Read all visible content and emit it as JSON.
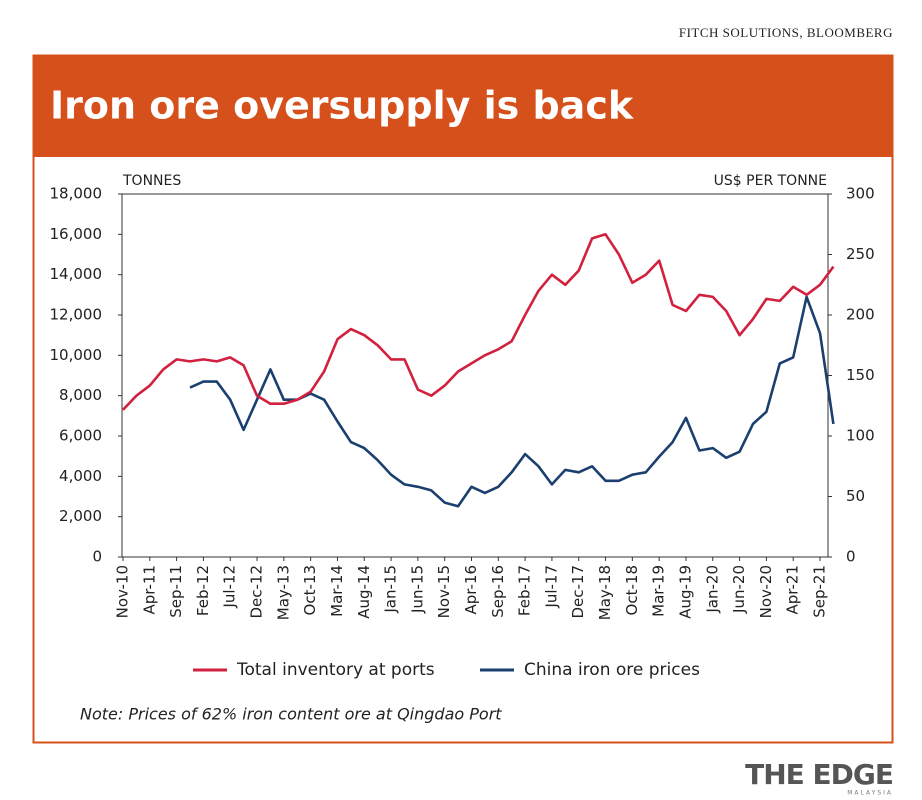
{
  "chart_data": {
    "type": "line",
    "title": "Iron ore oversupply is back",
    "source": "FITCH SOLUTIONS, BLOOMBERG",
    "note": "Note: Prices of 62% iron content ore at Qingdao Port",
    "brand": "THE EDGE",
    "brand_sub": "MALAYSIA",
    "y_label": "TONNES",
    "y2_label": "US$ PER TONNE",
    "categories": [
      "Nov-10",
      null,
      "Apr-11",
      null,
      "Sep-11",
      null,
      "Feb-12",
      null,
      "Jul-12",
      null,
      "Dec-12",
      null,
      "May-13",
      null,
      "Oct-13",
      null,
      "Mar-14",
      null,
      "Aug-14",
      null,
      "Jan-15",
      null,
      "Jun-15",
      null,
      "Nov-15",
      null,
      "Apr-16",
      null,
      "Sep-16",
      null,
      "Feb-17",
      null,
      "Jul-17",
      null,
      "Dec-17",
      null,
      "May-18",
      null,
      "Oct-18",
      null,
      "Mar-19",
      null,
      "Aug-19",
      null,
      "Jan-20",
      null,
      "Jun-20",
      null,
      "Nov-20",
      null,
      "Apr-21",
      null,
      "Sep-21",
      null
    ],
    "series": [
      {
        "name": "Total inventory at ports",
        "color": "#d1213f",
        "values": [
          7300,
          8000,
          8500,
          9300,
          9800,
          9700,
          9800,
          9700,
          9900,
          9500,
          8000,
          7600,
          7600,
          7800,
          8200,
          9200,
          10800,
          11300,
          11000,
          10500,
          9800,
          9800,
          8300,
          8000,
          8500,
          9200,
          9600,
          10000,
          10300,
          10700,
          12000,
          13200,
          14000,
          13500,
          14200,
          15800,
          16000,
          15000,
          13600,
          14000,
          14700,
          12500,
          12200,
          13000,
          12900,
          12200,
          11000,
          11800,
          12800,
          12700,
          13400,
          13000,
          13500,
          14400
        ]
      },
      {
        "name": "China iron ore prices",
        "color": "#1b3f6e",
        "axis": "y2",
        "values": [
          null,
          null,
          null,
          null,
          null,
          140,
          145,
          145,
          130,
          105,
          130,
          155,
          130,
          130,
          135,
          130,
          112,
          95,
          90,
          80,
          68,
          60,
          58,
          55,
          45,
          42,
          58,
          53,
          58,
          70,
          85,
          75,
          60,
          72,
          70,
          75,
          63,
          63,
          68,
          70,
          83,
          95,
          115,
          88,
          90,
          82,
          87,
          110,
          120,
          160,
          165,
          215,
          185,
          110
        ]
      }
    ],
    "ylim": [
      0,
      18000
    ],
    "yticks": [
      0,
      {
        "value": 2000,
        "label": "2,000"
      },
      {
        "value": 4000,
        "label": "4,000"
      },
      {
        "value": 6000,
        "label": "6,000"
      },
      {
        "value": 8000,
        "label": "8,000"
      },
      {
        "value": 10000,
        "label": "10,000"
      },
      {
        "value": 12000,
        "label": "12,000"
      },
      {
        "value": 14000,
        "label": "14,000"
      },
      {
        "value": 16000,
        "label": "16,000"
      },
      {
        "value": 18000,
        "label": "18,000"
      }
    ],
    "y2lim": [
      0,
      300
    ],
    "y2ticks": [
      0,
      50,
      100,
      150,
      200,
      250,
      300
    ]
  }
}
